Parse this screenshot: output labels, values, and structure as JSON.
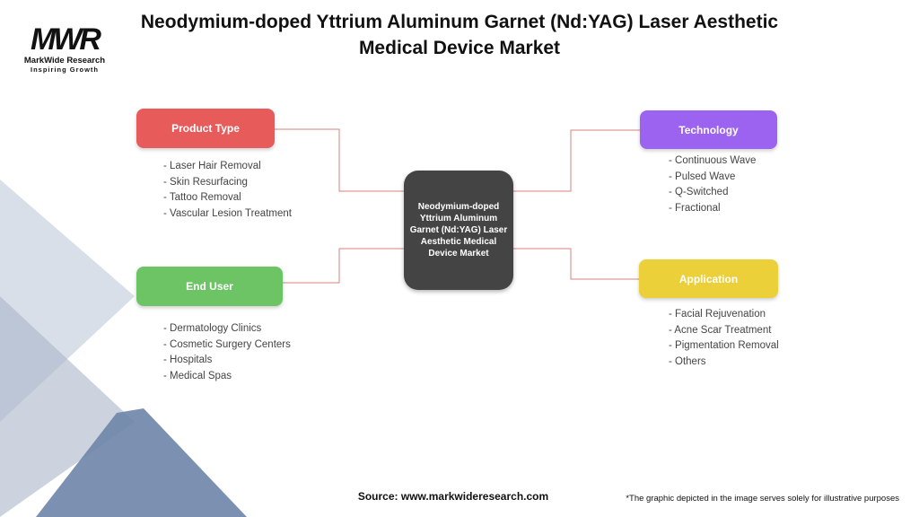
{
  "title": "Neodymium-doped Yttrium Aluminum Garnet (Nd:YAG) Laser Aesthetic Medical Device Market",
  "logo": {
    "text": "MarkWide Research",
    "tagline": "Inspiring Growth",
    "mark": "MWR"
  },
  "center": "Neodymium-doped Yttrium Aluminum Garnet (Nd:YAG) Laser Aesthetic Medical Device Market",
  "categories": [
    {
      "label": "Product Type",
      "color": "#e85b5b",
      "items": [
        "- Laser Hair Removal",
        "- Skin Resurfacing",
        "- Tattoo Removal",
        "- Vascular Lesion Treatment"
      ]
    },
    {
      "label": "Technology",
      "color": "#9b63ef",
      "items": [
        "- Continuous Wave",
        "- Pulsed Wave",
        "- Q-Switched",
        "- Fractional"
      ]
    },
    {
      "label": "End User",
      "color": "#6dc465",
      "items": [
        "- Dermatology Clinics",
        "- Cosmetic Surgery Centers",
        "- Hospitals",
        "- Medical Spas"
      ]
    },
    {
      "label": "Application",
      "color": "#ebd03a",
      "items": [
        "- Facial Rejuvenation",
        "- Acne Scar Treatment",
        "- Pigmentation Removal",
        "- Others"
      ]
    }
  ],
  "source": "Source: www.markwideresearch.com",
  "footnote": "*The graphic depicted in the image serves solely for illustrative purposes"
}
